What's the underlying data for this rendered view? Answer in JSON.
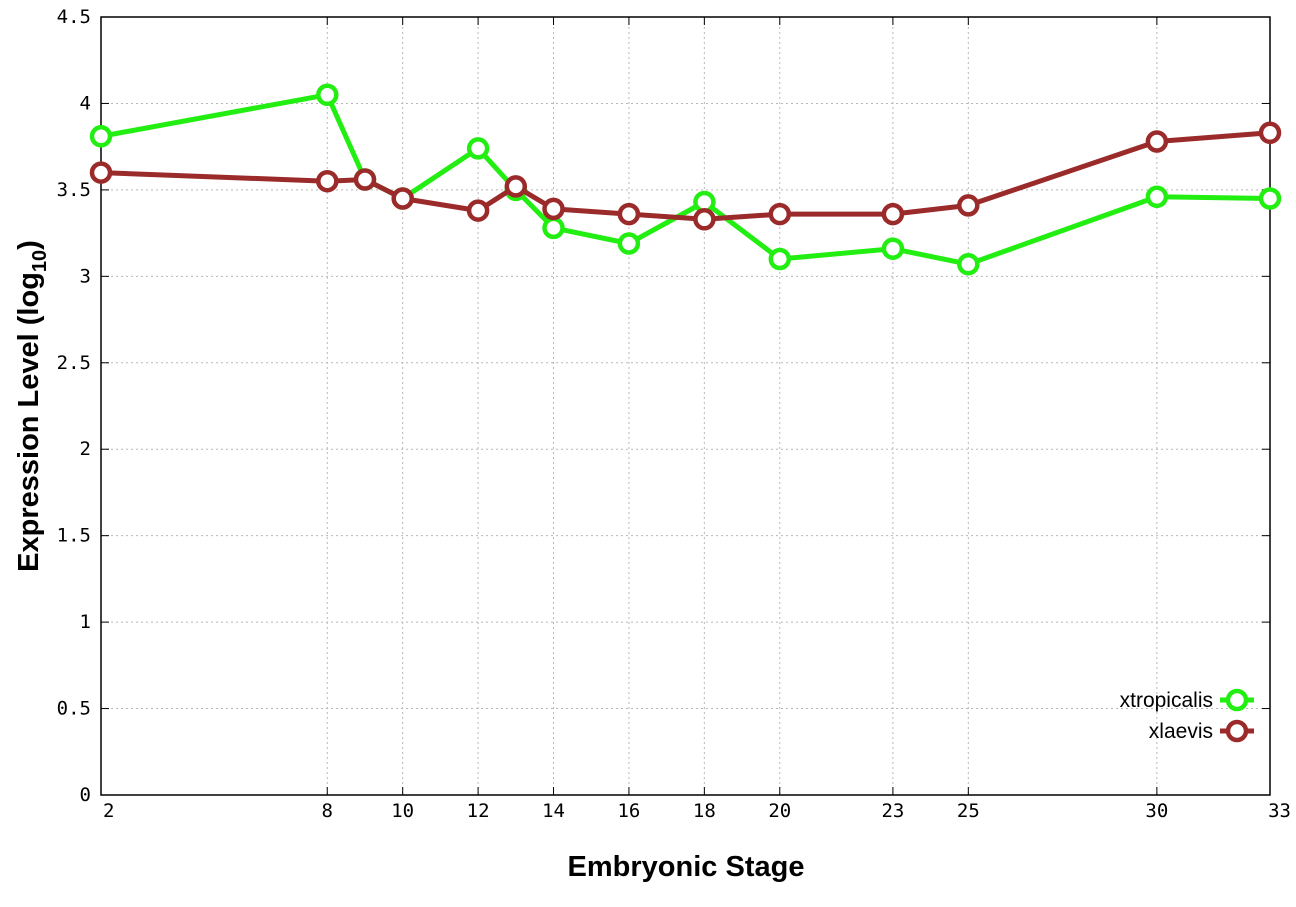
{
  "chart_data": {
    "type": "line",
    "xlabel": "Embryonic Stage",
    "ylabel": {
      "main": "Expression Level (log",
      "sub": "10",
      "tail": ")"
    },
    "x": [
      2,
      8,
      9,
      10,
      12,
      13,
      14,
      16,
      18,
      20,
      23,
      25,
      30,
      33
    ],
    "x_ticks": [
      2,
      8,
      10,
      12,
      14,
      16,
      18,
      20,
      23,
      25,
      30,
      33
    ],
    "xlim": [
      2,
      33
    ],
    "ylim": [
      0,
      4.5
    ],
    "y_ticks": [
      0,
      0.5,
      1,
      1.5,
      2,
      2.5,
      3,
      3.5,
      4,
      4.5
    ],
    "y_tick_labels": [
      "0",
      "0.5",
      "1",
      "1.5",
      "2",
      "2.5",
      "3",
      "3.5",
      "4",
      "4.5"
    ],
    "grid": true,
    "legend_position": "bottom-right",
    "series": [
      {
        "name": "xtropicalis",
        "color": "#22ee11",
        "values": [
          3.81,
          4.05,
          3.56,
          3.45,
          3.74,
          3.5,
          3.28,
          3.19,
          3.43,
          3.1,
          3.16,
          3.07,
          3.46,
          3.45
        ]
      },
      {
        "name": "xlaevis",
        "color": "#9b2a2a",
        "values": [
          3.6,
          3.55,
          3.56,
          3.45,
          3.38,
          3.52,
          3.39,
          3.36,
          3.33,
          3.36,
          3.36,
          3.41,
          3.78,
          3.83
        ]
      }
    ]
  }
}
